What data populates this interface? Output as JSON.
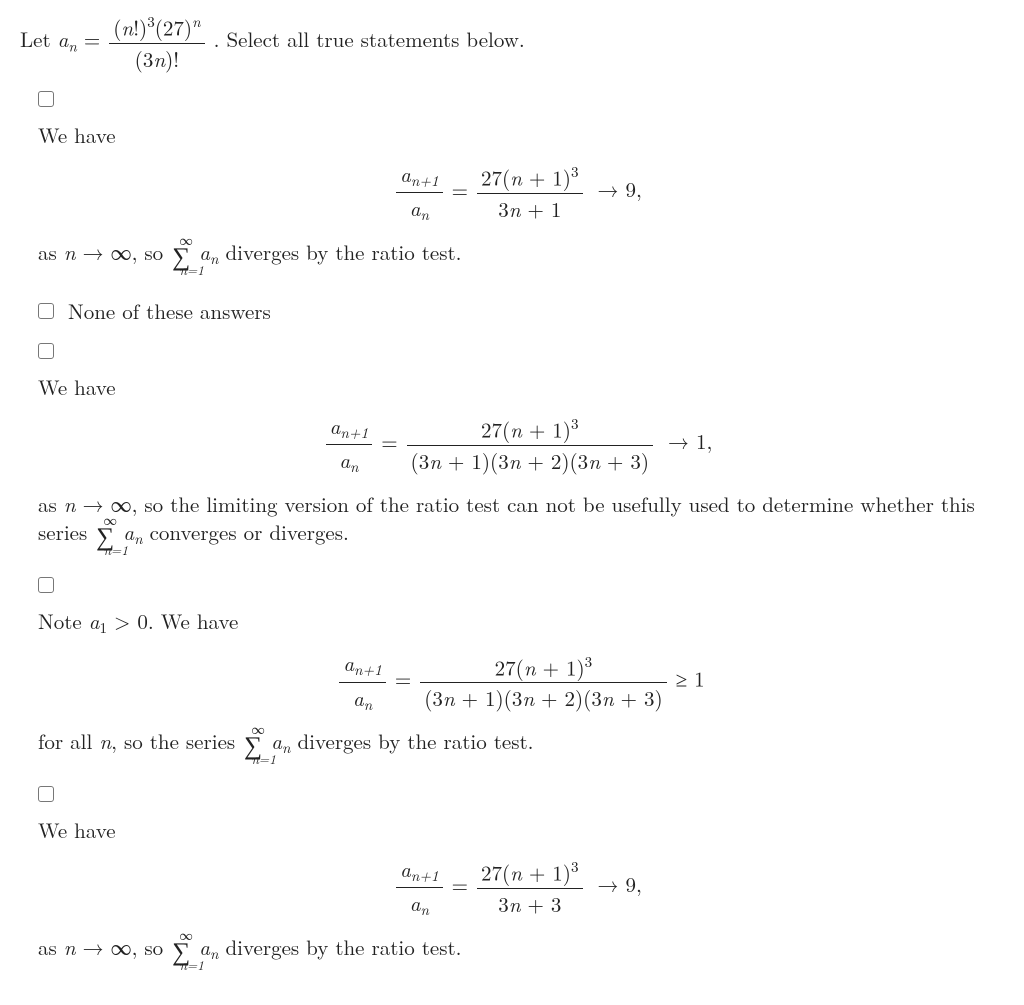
{
  "question": {
    "prefix": "Let ",
    "an": "a",
    "an_sub": "n",
    "eq": " = ",
    "frac_num_parts": [
      "(",
      "n",
      "!)",
      "3",
      "(27)",
      "n"
    ],
    "frac_den_parts": [
      "(3",
      "n",
      ")!"
    ],
    "suffix": ".  Select all true statements below."
  },
  "opt1": {
    "lead": "We have",
    "frac_l_num": "a",
    "frac_l_num_sub": "n+1",
    "frac_l_den": "a",
    "frac_l_den_sub": "n",
    "eq": " = ",
    "rnum_a": "27(",
    "rnum_b": "n",
    "rnum_c": " + 1)",
    "rnum_sup": "3",
    "rden_a": "3",
    "rden_b": "n",
    "rden_c": " + 1",
    "arrow": "→ 9,",
    "tail_a": "as ",
    "tail_b": "n",
    "tail_c": " → ∞, so ",
    "tail_d": "a",
    "tail_d_sub": "n",
    "tail_e": " diverges by the ratio test.",
    "sum_lo": "n=1",
    "sum_hi": "∞"
  },
  "opt2": {
    "label": "None of these answers"
  },
  "opt3": {
    "lead": "We have",
    "frac_l_num": "a",
    "frac_l_num_sub": "n+1",
    "frac_l_den": "a",
    "frac_l_den_sub": "n",
    "eq": " = ",
    "rnum_a": "27(",
    "rnum_b": "n",
    "rnum_c": " + 1)",
    "rnum_sup": "3",
    "rden": "(3n + 1)(3n + 2)(3n + 3)",
    "rden_i1": "n",
    "rden_i2": "n",
    "rden_i3": "n",
    "rden_p1": "(3",
    "rden_p2": " + 1)(3",
    "rden_p3": " + 2)(3",
    "rden_p4": " + 3)",
    "arrow": "→ 1,",
    "tail_a": "as ",
    "tail_b": "n",
    "tail_c": " → ∞, so the limiting version of the ratio test can not be usefully used to determine whether this series ",
    "tail_d": "a",
    "tail_d_sub": "n",
    "tail_e": " converges or diverges.",
    "sum_lo": "n=1",
    "sum_hi": "∞"
  },
  "opt4": {
    "lead_a": "Note ",
    "lead_b": "a",
    "lead_b_sub": "1",
    "lead_c": " > 0.  We have",
    "frac_l_num": "a",
    "frac_l_num_sub": "n+1",
    "frac_l_den": "a",
    "frac_l_den_sub": "n",
    "eq": " = ",
    "rnum_a": "27(",
    "rnum_b": "n",
    "rnum_c": " + 1)",
    "rnum_sup": "3",
    "rden_p1": "(3",
    "rden_p2": " + 1)(3",
    "rden_p3": " + 2)(3",
    "rden_p4": " + 3)",
    "rden_i1": "n",
    "rden_i2": "n",
    "rden_i3": "n",
    "geq": " ≥ 1",
    "tail_a": "for all ",
    "tail_b": "n",
    "tail_c": ", so the series ",
    "tail_d": "a",
    "tail_d_sub": "n",
    "tail_e": " diverges by the ratio test.",
    "sum_lo": "n=1",
    "sum_hi": "∞"
  },
  "opt5": {
    "lead": "We have",
    "frac_l_num": "a",
    "frac_l_num_sub": "n+1",
    "frac_l_den": "a",
    "frac_l_den_sub": "n",
    "eq": " = ",
    "rnum_a": "27(",
    "rnum_b": "n",
    "rnum_c": " + 1)",
    "rnum_sup": "3",
    "rden_a": "3",
    "rden_b": "n",
    "rden_c": " + 3",
    "arrow": "→ 9,",
    "tail_a": "as ",
    "tail_b": "n",
    "tail_c": " → ∞, so ",
    "tail_d": "a",
    "tail_d_sub": "n",
    "tail_e": " diverges by the ratio test.",
    "sum_lo": "n=1",
    "sum_hi": "∞"
  },
  "style": {
    "text_color": "#222222",
    "background": "#ffffff",
    "checkbox_border": "#777777",
    "font_size_pt": 16
  }
}
